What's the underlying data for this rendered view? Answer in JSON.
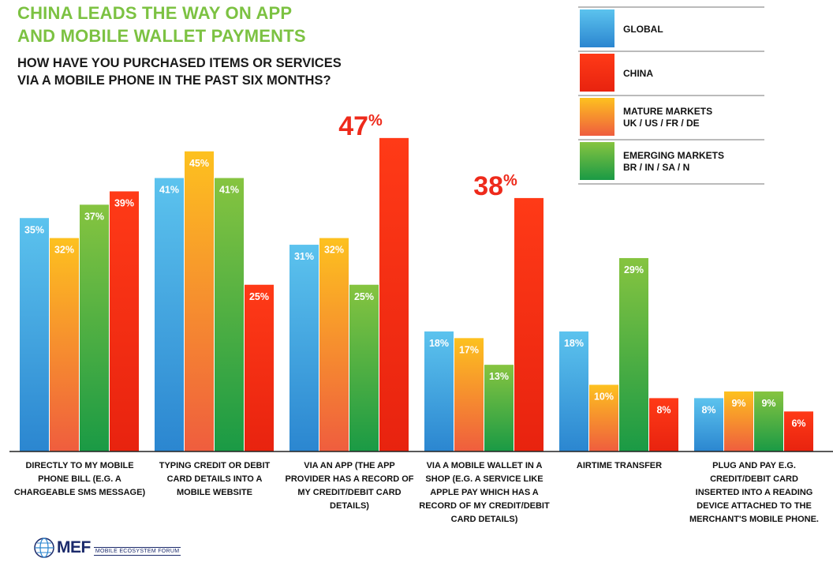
{
  "title_line1": "CHINA LEADS THE WAY ON APP",
  "title_line2": "AND MOBILE WALLET PAYMENTS",
  "subtitle_line1": "HOW HAVE YOU PURCHASED ITEMS OR SERVICES",
  "subtitle_line2": "VIA A MOBILE PHONE IN THE PAST SIX MONTHS?",
  "legend": [
    {
      "line1": "GLOBAL",
      "line2": ""
    },
    {
      "line1": "CHINA",
      "line2": ""
    },
    {
      "line1": "MATURE MARKETS",
      "line2": "UK / US / FR / DE"
    },
    {
      "line1": "EMERGING MARKETS",
      "line2": "BR / IN / SA / N"
    }
  ],
  "colors": {
    "global_top": "#5cc3ee",
    "global_bottom": "#2b86d0",
    "china_top": "#ff3a17",
    "china_bottom": "#e8230f",
    "mature_top": "#fdc11f",
    "mature_bottom": "#ef5d3e",
    "emerging_top": "#86c440",
    "emerging_bottom": "#1a9a45",
    "highlight": "#ee2a1b",
    "title": "#7cc242"
  },
  "footer": {
    "logo": "MEF",
    "sub": "MOBILE ECOSYSTEM FORUM"
  },
  "chart_data": {
    "type": "bar",
    "categories": [
      [
        "DIRECTLY TO MY MOBILE",
        "PHONE BILL (E.G. A",
        "CHARGEABLE SMS MESSAGE)"
      ],
      [
        "TYPING CREDIT OR DEBIT",
        "CARD DETAILS INTO A",
        "MOBILE WEBSITE"
      ],
      [
        "VIA AN APP (THE APP",
        "PROVIDER HAS A RECORD OF",
        "MY CREDIT/DEBIT CARD",
        "DETAILS)"
      ],
      [
        "VIA A MOBILE WALLET IN A",
        "SHOP (E.G. A SERVICE LIKE",
        "APPLE PAY WHICH HAS A",
        "RECORD OF MY CREDIT/DEBIT",
        "CARD DETAILS)"
      ],
      [
        "AIRTIME TRANSFER"
      ],
      [
        "PLUG AND PAY E.G.",
        "CREDIT/DEBIT CARD",
        "INSERTED INTO A READING",
        "DEVICE ATTACHED TO THE",
        "MERCHANT'S MOBILE PHONE."
      ]
    ],
    "series": [
      {
        "name": "GLOBAL",
        "values": [
          35,
          41,
          31,
          18,
          18,
          8
        ]
      },
      {
        "name": "CHINA",
        "values": [
          39,
          25,
          47,
          38,
          8,
          6
        ]
      },
      {
        "name": "MATURE MARKETS",
        "values": [
          32,
          45,
          32,
          17,
          10,
          9
        ]
      },
      {
        "name": "EMERGING MARKETS",
        "values": [
          37,
          41,
          25,
          13,
          29,
          9
        ]
      }
    ],
    "bar_order": [
      "GLOBAL",
      "MATURE MARKETS",
      "EMERGING MARKETS",
      "CHINA"
    ],
    "highlighted": [
      {
        "series": "CHINA",
        "category_index": 2
      },
      {
        "series": "CHINA",
        "category_index": 3
      }
    ],
    "value_suffix": "%",
    "ylim": [
      0,
      50
    ],
    "grid": false,
    "legend_position": "top-right"
  }
}
